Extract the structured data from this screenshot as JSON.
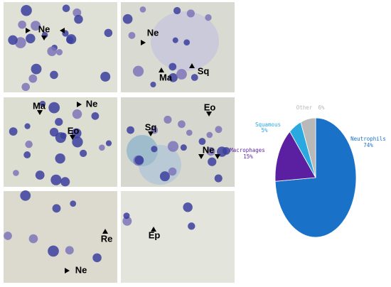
{
  "panels": [
    [
      "Ne"
    ],
    [
      "Ne",
      "Ma",
      "Sq"
    ],
    [
      "Ma",
      "Ne",
      "Eo"
    ],
    [
      "Eo",
      "Sq",
      "Ne"
    ],
    [
      "Re",
      "Ne"
    ],
    [
      "Ep"
    ]
  ],
  "chart_data": {
    "type": "pie",
    "categories": [
      "Neutrophils",
      "Macrophages",
      "Squamous",
      "Other"
    ],
    "values": [
      74,
      15,
      5,
      6
    ],
    "value_labels": [
      "74%",
      "15%",
      "5%",
      "6%"
    ],
    "colors": [
      "#1a72c8",
      "#5b1fa2",
      "#2aa8e0",
      "#b9b9b9"
    ]
  }
}
